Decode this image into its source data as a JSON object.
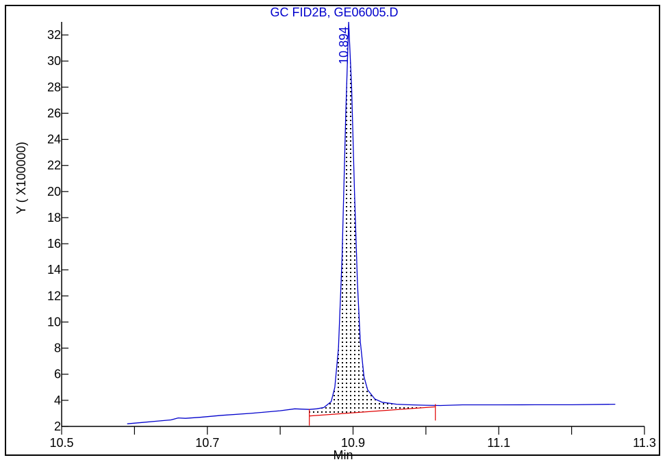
{
  "chart_data": {
    "type": "line",
    "title": "GC FID2B, GE06005.D",
    "xlabel": "Min",
    "ylabel": "Y ( X100000)",
    "xlim": [
      10.5,
      11.3
    ],
    "ylim": [
      2,
      33
    ],
    "x_ticks": [
      10.5,
      10.7,
      10.9,
      11.1,
      11.3
    ],
    "x_tick_labels": [
      "10.5",
      "10.7",
      "10.9",
      "11.1",
      "11.3"
    ],
    "y_ticks": [
      2,
      4,
      6,
      8,
      10,
      12,
      14,
      16,
      18,
      20,
      22,
      24,
      26,
      28,
      30,
      32
    ],
    "y_tick_labels": [
      "2",
      "4",
      "6",
      "8",
      "10",
      "12",
      "14",
      "16",
      "18",
      "20",
      "22",
      "24",
      "26",
      "28",
      "30",
      "32"
    ],
    "grid": false,
    "colors": {
      "signal": "#0000cc",
      "baseline": "#e00000",
      "text": "#0000cc",
      "axis": "#000000"
    },
    "series": [
      {
        "points": [
          [
            10.59,
            2.2
          ],
          [
            10.61,
            2.3
          ],
          [
            10.63,
            2.4
          ],
          [
            10.65,
            2.5
          ],
          [
            10.66,
            2.65
          ],
          [
            10.67,
            2.62
          ],
          [
            10.69,
            2.7
          ],
          [
            10.72,
            2.85
          ],
          [
            10.76,
            3.0
          ],
          [
            10.8,
            3.2
          ],
          [
            10.82,
            3.35
          ],
          [
            10.84,
            3.3
          ],
          [
            10.85,
            3.35
          ],
          [
            10.86,
            3.45
          ],
          [
            10.87,
            3.9
          ],
          [
            10.875,
            5.0
          ],
          [
            10.88,
            8.0
          ],
          [
            10.885,
            15.0
          ],
          [
            10.89,
            26.0
          ],
          [
            10.894,
            33.0
          ],
          [
            10.898,
            28.0
          ],
          [
            10.902,
            20.0
          ],
          [
            10.906,
            13.0
          ],
          [
            10.91,
            8.5
          ],
          [
            10.915,
            5.8
          ],
          [
            10.92,
            4.8
          ],
          [
            10.93,
            4.1
          ],
          [
            10.94,
            3.85
          ],
          [
            10.96,
            3.7
          ],
          [
            10.98,
            3.65
          ],
          [
            11.0,
            3.62
          ],
          [
            11.02,
            3.6
          ],
          [
            11.05,
            3.65
          ],
          [
            11.1,
            3.65
          ],
          [
            11.15,
            3.66
          ],
          [
            11.2,
            3.66
          ],
          [
            11.26,
            3.7
          ]
        ]
      }
    ],
    "peak": {
      "label": "10.894",
      "retention_time": 10.894,
      "apex": 33.0,
      "integration_start": 10.84,
      "integration_end": 11.013,
      "baseline_start_y": 2.8,
      "baseline_end_y": 3.5,
      "fill": "dotted"
    }
  }
}
